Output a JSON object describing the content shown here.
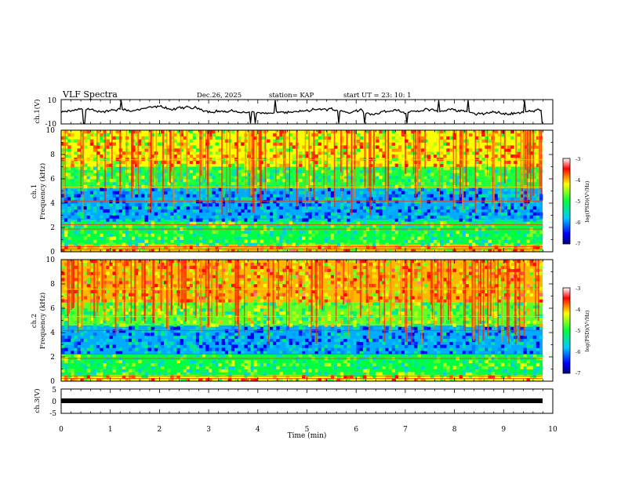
{
  "header": {
    "title": "VLF Spectra",
    "date": "Dec.26, 2025",
    "station": "station= KAP",
    "start": "start UT =   23: 10: 1"
  },
  "chart_data": [
    {
      "type": "line",
      "name": "ch1-waveform",
      "ylabel": "ch.1(V)",
      "ylim": [
        -10,
        10
      ],
      "y_ticks": [
        "10",
        "-10"
      ],
      "x_range_min": [
        0,
        9.8
      ]
    },
    {
      "type": "heatmap",
      "name": "ch1-spectrogram",
      "ylabel": "ch.1\nFrequency (kHz)",
      "ylabel_lines": [
        "ch.1",
        "Frequency (kHz)"
      ],
      "ylim_khz": [
        0,
        10
      ],
      "y_ticks": [
        "0",
        "2",
        "4",
        "6",
        "8",
        "10"
      ],
      "colorbar": {
        "label": "log(PSD)(V²/Hz)",
        "range": [
          -7,
          -3
        ],
        "ticks": [
          "-3",
          "-4",
          "-5",
          "-6",
          "-7"
        ]
      },
      "bands_khz": [
        {
          "from": 0.0,
          "to": 0.6,
          "level": -4.0
        },
        {
          "from": 0.6,
          "to": 2.6,
          "level": -5.0
        },
        {
          "from": 2.6,
          "to": 5.2,
          "level": -5.9
        },
        {
          "from": 5.2,
          "to": 7.0,
          "level": -4.9
        },
        {
          "from": 7.0,
          "to": 10.0,
          "level": -4.2
        }
      ]
    },
    {
      "type": "heatmap",
      "name": "ch2-spectrogram",
      "ylabel": "ch.2\nFrequency (kHz)",
      "ylabel_lines": [
        "ch.2",
        "Frequency (kHz)"
      ],
      "ylim_khz": [
        0,
        10
      ],
      "y_ticks": [
        "0",
        "2",
        "4",
        "6",
        "8",
        "10"
      ],
      "colorbar": {
        "label": "log(PSD)(V²/Hz)",
        "range": [
          -7,
          -3
        ],
        "ticks": [
          "-3",
          "-4",
          "-5",
          "-6",
          "-7"
        ]
      },
      "bands_khz": [
        {
          "from": 0.0,
          "to": 0.5,
          "level": -4.2
        },
        {
          "from": 0.5,
          "to": 2.2,
          "level": -5.0
        },
        {
          "from": 2.2,
          "to": 4.6,
          "level": -5.9
        },
        {
          "from": 4.6,
          "to": 6.5,
          "level": -4.7
        },
        {
          "from": 6.5,
          "to": 10.0,
          "level": -4.0
        }
      ]
    },
    {
      "type": "line",
      "name": "ch3-waveform",
      "ylabel": "ch.3(V)",
      "ylim": [
        -5,
        5
      ],
      "y_ticks": [
        "5",
        "0",
        "-5"
      ],
      "x_range_min": [
        0,
        9.8
      ]
    }
  ],
  "x_axis": {
    "label": "Time (min)",
    "range": [
      0,
      10
    ],
    "ticks": [
      "0",
      "1",
      "2",
      "3",
      "4",
      "5",
      "6",
      "7",
      "8",
      "9",
      "10"
    ]
  }
}
